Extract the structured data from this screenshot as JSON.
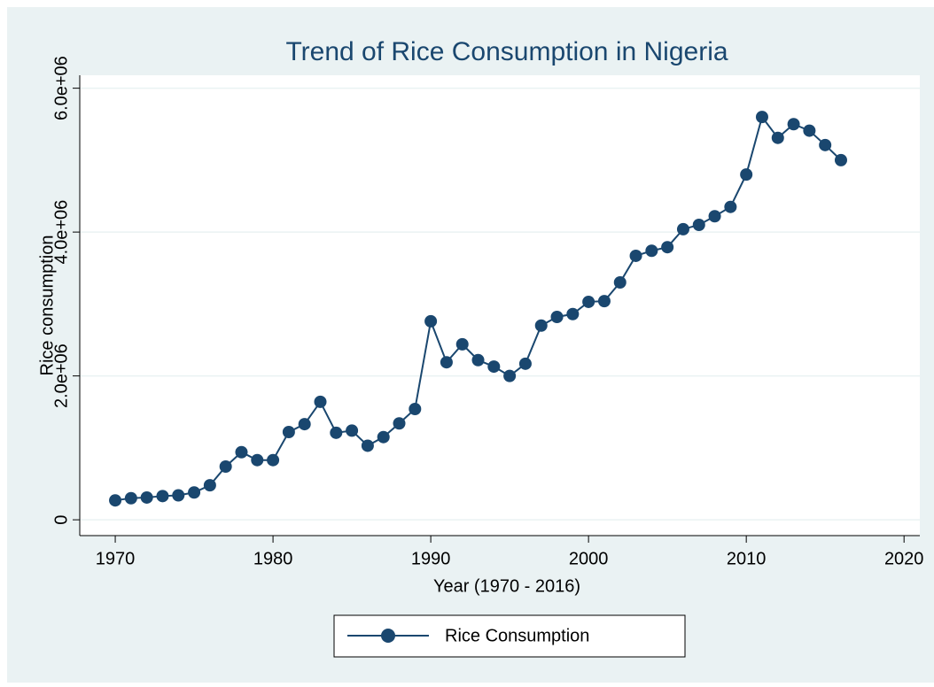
{
  "chart_data": {
    "type": "line",
    "title": "Trend of Rice Consumption in Nigeria",
    "xlabel": "Year (1970 - 2016)",
    "ylabel": "Rice consumption",
    "x": [
      1970,
      1971,
      1972,
      1973,
      1974,
      1975,
      1976,
      1977,
      1978,
      1979,
      1980,
      1981,
      1982,
      1983,
      1984,
      1985,
      1986,
      1987,
      1988,
      1989,
      1990,
      1991,
      1992,
      1993,
      1994,
      1995,
      1996,
      1997,
      1998,
      1999,
      2000,
      2001,
      2002,
      2003,
      2004,
      2005,
      2006,
      2007,
      2008,
      2009,
      2010,
      2011,
      2012,
      2013,
      2014,
      2015,
      2016
    ],
    "series": [
      {
        "name": "Rice Consumption",
        "color": "#1a476f",
        "values": [
          270000,
          300000,
          310000,
          330000,
          340000,
          380000,
          480000,
          740000,
          940000,
          830000,
          830000,
          1220000,
          1330000,
          1640000,
          1210000,
          1240000,
          1030000,
          1150000,
          1340000,
          1540000,
          2760000,
          2190000,
          2440000,
          2220000,
          2130000,
          2000000,
          2170000,
          2700000,
          2820000,
          2860000,
          3030000,
          3040000,
          3300000,
          3670000,
          3740000,
          3790000,
          4040000,
          4100000,
          4220000,
          4350000,
          4800000,
          5600000,
          5310000,
          5500000,
          5410000,
          5210000,
          5000000
        ]
      }
    ],
    "xlim": [
      1967.75,
      2021
    ],
    "xticks": [
      1970,
      1980,
      1990,
      2000,
      2010,
      2020
    ],
    "ylim": [
      -220000,
      6180000
    ],
    "yticks": [
      0,
      {
        "value": 2000000,
        "label": "2.0e+06"
      },
      {
        "value": 4000000,
        "label": "4.0e+06"
      },
      {
        "value": 6000000,
        "label": "6.0e+06"
      }
    ],
    "grid": true,
    "legend": "bottom"
  }
}
